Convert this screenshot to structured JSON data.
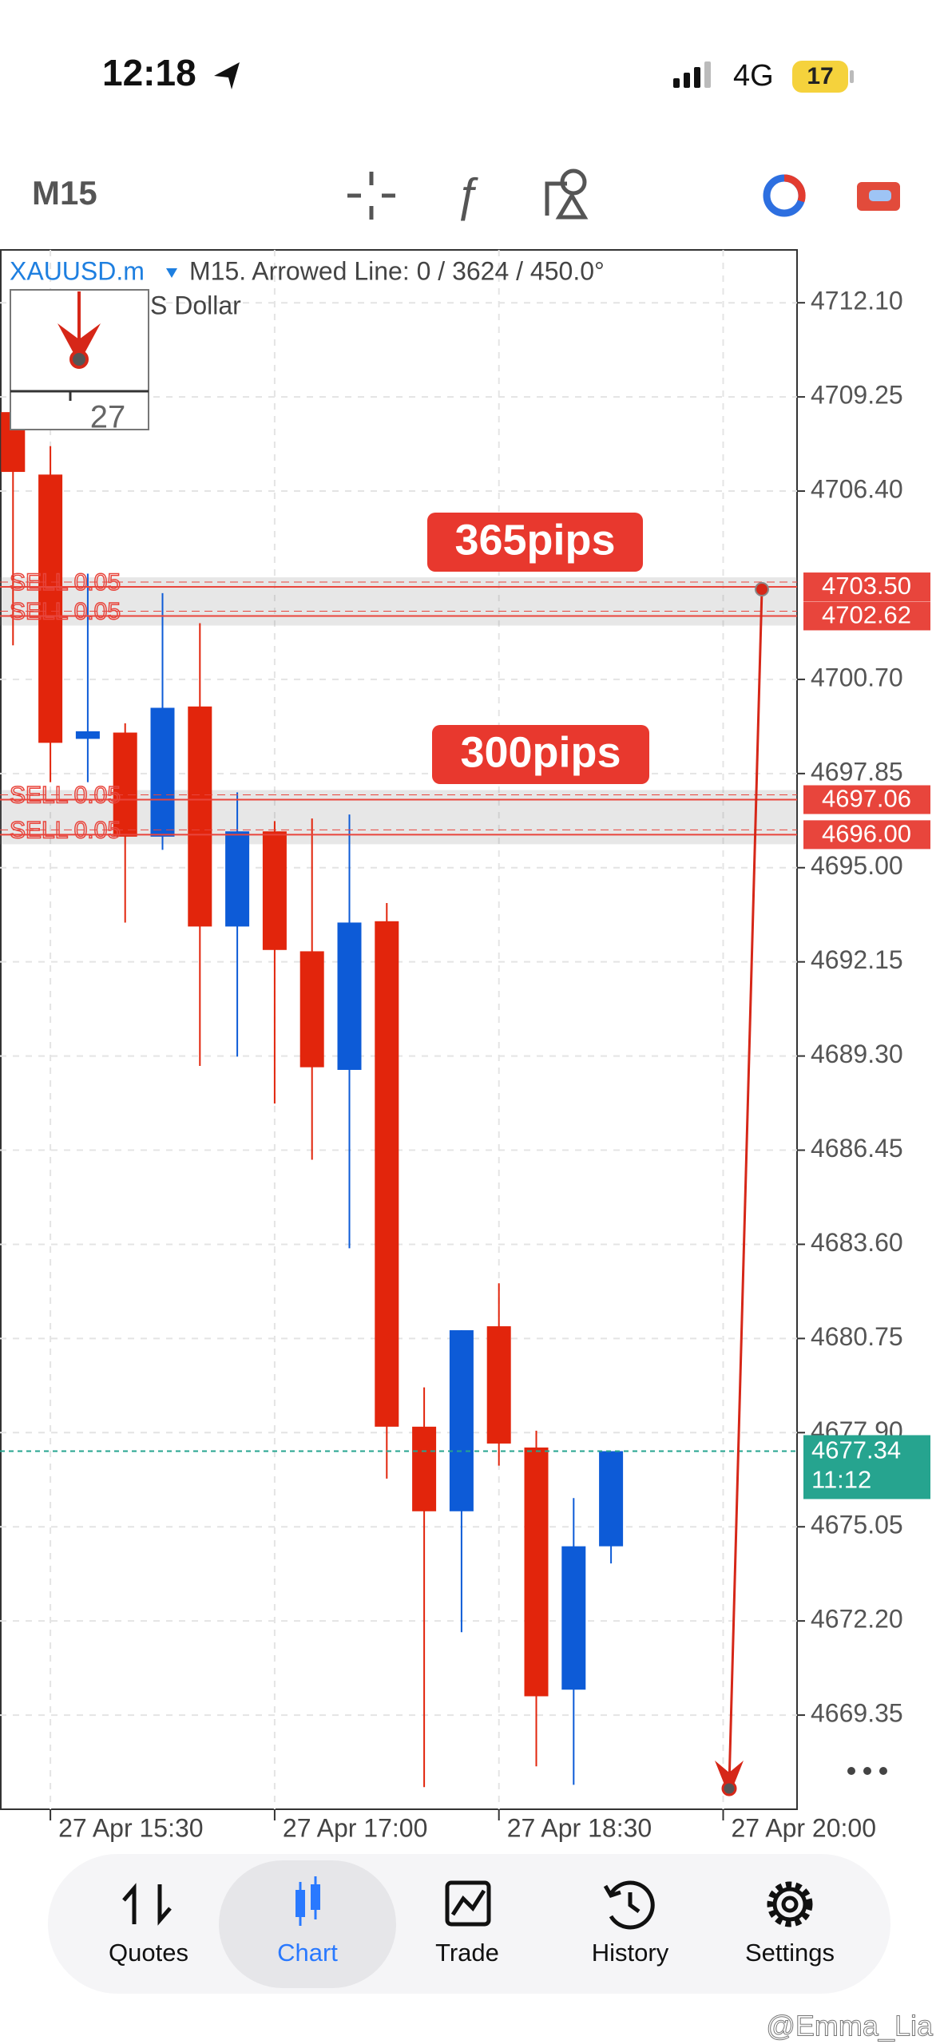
{
  "status_bar": {
    "time": "12:18",
    "network": "4G",
    "battery": "17"
  },
  "toolbar": {
    "timeframe": "M15"
  },
  "chart_data": {
    "type": "candlestick",
    "symbol": "XAUUSD.m",
    "info": "M15. Arrowed Line: 0 / 3624 / 450.0°",
    "description": "S Dollar",
    "thumbnail_label": "27",
    "categories": [
      null,
      "27 Apr 15:30",
      null,
      null,
      null,
      null,
      null,
      "27 Apr 17:00",
      null,
      null,
      null,
      null,
      null,
      "27 Apr 18:30",
      null,
      null,
      null,
      null,
      null,
      "27 Apr 20:00"
    ],
    "open": [
      4708.79,
      4706.9,
      4698.9,
      4699.09,
      4695.94,
      4699.88,
      4693.22,
      4696.1,
      4692.47,
      4688.88,
      4693.38,
      4678.08,
      4675.52,
      4681.12,
      4677.45,
      4670.12,
      4674.46,
      null,
      null,
      null
    ],
    "high": [
      4708.79,
      4707.76,
      4703.9,
      4699.37,
      4703.31,
      4702.4,
      4697.28,
      4696.41,
      4696.49,
      4696.61,
      4693.93,
      4679.27,
      4681.0,
      4682.42,
      4677.96,
      4675.92,
      4677.34,
      null,
      null,
      null
    ],
    "low": [
      4701.73,
      4697.59,
      4697.59,
      4693.34,
      4695.54,
      4689.0,
      4689.28,
      4687.86,
      4686.16,
      4683.48,
      4676.51,
      4667.17,
      4671.86,
      4676.9,
      4667.8,
      4667.24,
      4673.94,
      null,
      null,
      null
    ],
    "close": [
      4706.98,
      4698.78,
      4699.13,
      4695.94,
      4699.84,
      4693.22,
      4696.1,
      4692.51,
      4688.96,
      4693.34,
      4678.08,
      4675.52,
      4681.0,
      4677.57,
      4669.92,
      4674.46,
      4677.34,
      null,
      null,
      null
    ],
    "up_color": "#0d5bd7",
    "down_color": "#e2250c",
    "ylim": [
      4666.5,
      4713.7
    ],
    "yticks": [
      {
        "value": 4712.1,
        "label": "4712.10"
      },
      4709.25,
      {
        "value": 4706.4,
        "label": "4706.40"
      },
      {
        "value": 4700.7,
        "label": "4700.70"
      },
      4697.85,
      {
        "value": 4695.0,
        "label": "4695.00"
      },
      4692.15,
      {
        "value": 4689.3,
        "label": "4689.30"
      },
      4686.45,
      {
        "value": 4683.6,
        "label": "4683.60"
      },
      4680.75,
      {
        "value": 4677.9,
        "label": "4677.90"
      },
      4675.05,
      {
        "value": 4672.2,
        "label": "4672.20"
      },
      4669.35
    ],
    "grid": true,
    "orders": {
      "labels": [
        "SELL 0.05",
        "SELL 0.05",
        "SELL 0.05",
        "SELL 0.05"
      ],
      "values": [
        4703.5,
        4702.62,
        4697.06,
        4696.0
      ],
      "value_labels": [
        "4703.50",
        "4702.62",
        "4697.06",
        "4696.00"
      ],
      "color": "#e8453c"
    },
    "current_price": 4677.34,
    "countdown": "11:12",
    "current_color": "#26a48f",
    "annotations": [
      "365pips",
      "300pips"
    ]
  },
  "nav": {
    "items": [
      "Quotes",
      "Chart",
      "Trade",
      "History",
      "Settings"
    ],
    "selected": 1
  },
  "watermark": "@Emma_Lia"
}
